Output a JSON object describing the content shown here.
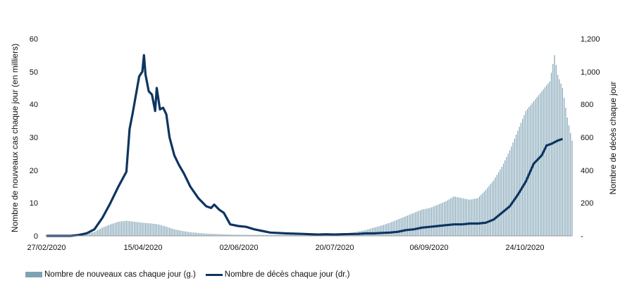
{
  "chart_data": {
    "type": "bar+line",
    "title": "",
    "x_tick_labels": [
      "27/02/2020",
      "15/04/2020",
      "02/06/2020",
      "20/07/2020",
      "06/09/2020",
      "24/10/2020"
    ],
    "left_axis": {
      "label": "Nombre de nouveaux cas chaque jour (en milliers)",
      "ylim": [
        0,
        60
      ],
      "ticks": [
        "0",
        "10",
        "20",
        "30",
        "40",
        "50",
        "60"
      ]
    },
    "right_axis": {
      "label": "Nombre de décès chaque jour",
      "ylim": [
        0,
        1200
      ],
      "ticks": [
        "-",
        "200",
        "400",
        "600",
        "800",
        "1,000",
        "1,200"
      ]
    },
    "series": [
      {
        "name": "Nombre de nouveaux cas chaque jour (g.)",
        "type": "bar",
        "axis": "left",
        "color": "#7fa3b5",
        "points": [
          [
            0,
            0
          ],
          [
            15,
            0.1
          ],
          [
            20,
            0.2
          ],
          [
            25,
            0.6
          ],
          [
            30,
            1.2
          ],
          [
            35,
            2.5
          ],
          [
            40,
            3.5
          ],
          [
            45,
            4.3
          ],
          [
            50,
            4.6
          ],
          [
            55,
            4.3
          ],
          [
            60,
            4.0
          ],
          [
            65,
            3.8
          ],
          [
            70,
            3.5
          ],
          [
            75,
            2.8
          ],
          [
            80,
            2.0
          ],
          [
            85,
            1.5
          ],
          [
            90,
            1.1
          ],
          [
            95,
            0.9
          ],
          [
            100,
            0.7
          ],
          [
            105,
            0.6
          ],
          [
            110,
            0.5
          ],
          [
            115,
            0.4
          ],
          [
            120,
            0.35
          ],
          [
            130,
            0.3
          ],
          [
            140,
            0.3
          ],
          [
            150,
            0.3
          ],
          [
            160,
            0.3
          ],
          [
            170,
            0.35
          ],
          [
            180,
            0.4
          ],
          [
            185,
            0.6
          ],
          [
            190,
            0.9
          ],
          [
            195,
            1.3
          ],
          [
            200,
            1.8
          ],
          [
            205,
            2.5
          ],
          [
            210,
            3.2
          ],
          [
            215,
            4.0
          ],
          [
            220,
            5.0
          ],
          [
            225,
            6.0
          ],
          [
            230,
            7.0
          ],
          [
            235,
            8.0
          ],
          [
            240,
            8.5
          ],
          [
            245,
            9.5
          ],
          [
            250,
            10.5
          ],
          [
            255,
            12.0
          ],
          [
            260,
            11.5
          ],
          [
            265,
            11.0
          ],
          [
            270,
            11.5
          ],
          [
            275,
            14.0
          ],
          [
            280,
            17.0
          ],
          [
            285,
            21.0
          ],
          [
            290,
            26.0
          ],
          [
            295,
            32.0
          ],
          [
            300,
            38.0
          ],
          [
            305,
            41.0
          ],
          [
            310,
            44.0
          ],
          [
            315,
            47.0
          ],
          [
            318,
            55.0
          ],
          [
            320,
            49.0
          ],
          [
            323,
            45.0
          ],
          [
            326,
            36.0
          ],
          [
            329,
            29.0
          ]
        ]
      },
      {
        "name": "Nombre de décès chaque jour (dr.)",
        "type": "line",
        "axis": "right",
        "color": "#0d3560",
        "points": [
          [
            0,
            0
          ],
          [
            15,
            0
          ],
          [
            20,
            5
          ],
          [
            25,
            15
          ],
          [
            30,
            40
          ],
          [
            35,
            110
          ],
          [
            40,
            200
          ],
          [
            45,
            300
          ],
          [
            50,
            390
          ],
          [
            52,
            650
          ],
          [
            54,
            750
          ],
          [
            56,
            860
          ],
          [
            58,
            970
          ],
          [
            60,
            1000
          ],
          [
            61,
            1100
          ],
          [
            62,
            980
          ],
          [
            64,
            880
          ],
          [
            66,
            860
          ],
          [
            68,
            760
          ],
          [
            69,
            900
          ],
          [
            71,
            770
          ],
          [
            73,
            780
          ],
          [
            75,
            740
          ],
          [
            77,
            600
          ],
          [
            80,
            490
          ],
          [
            83,
            430
          ],
          [
            86,
            380
          ],
          [
            90,
            300
          ],
          [
            95,
            230
          ],
          [
            100,
            180
          ],
          [
            103,
            170
          ],
          [
            105,
            190
          ],
          [
            108,
            160
          ],
          [
            111,
            140
          ],
          [
            115,
            70
          ],
          [
            120,
            60
          ],
          [
            125,
            55
          ],
          [
            130,
            40
          ],
          [
            135,
            30
          ],
          [
            140,
            20
          ],
          [
            150,
            15
          ],
          [
            160,
            12
          ],
          [
            170,
            8
          ],
          [
            175,
            10
          ],
          [
            180,
            8
          ],
          [
            185,
            10
          ],
          [
            195,
            12
          ],
          [
            200,
            15
          ],
          [
            205,
            15
          ],
          [
            210,
            18
          ],
          [
            215,
            20
          ],
          [
            220,
            25
          ],
          [
            225,
            35
          ],
          [
            230,
            40
          ],
          [
            235,
            50
          ],
          [
            240,
            55
          ],
          [
            245,
            60
          ],
          [
            250,
            65
          ],
          [
            255,
            70
          ],
          [
            260,
            70
          ],
          [
            265,
            75
          ],
          [
            270,
            75
          ],
          [
            275,
            80
          ],
          [
            280,
            100
          ],
          [
            285,
            140
          ],
          [
            290,
            180
          ],
          [
            295,
            250
          ],
          [
            300,
            330
          ],
          [
            305,
            440
          ],
          [
            310,
            490
          ],
          [
            313,
            550
          ],
          [
            316,
            560
          ],
          [
            320,
            580
          ],
          [
            323,
            590
          ]
        ]
      }
    ]
  }
}
